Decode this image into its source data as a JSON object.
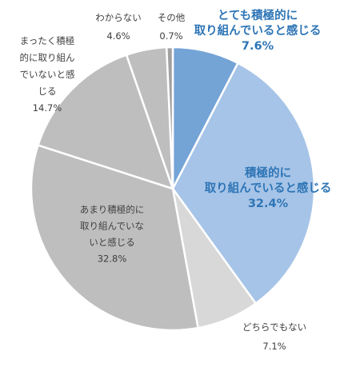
{
  "chart_data": {
    "type": "pie",
    "start": "top",
    "direction": "clockwise",
    "slices": [
      {
        "label": [
          "とても積極的に",
          "取り組んでいると感じる"
        ],
        "value": 7.6,
        "value_label": "7.6%",
        "color": "#74a3d6",
        "label_color": "#2e75b6"
      },
      {
        "label": [
          "積極的に",
          "取り組んでいると感じる"
        ],
        "value": 32.4,
        "value_label": "32.4%",
        "color": "#a6c4e7",
        "label_color": "#2e75b6"
      },
      {
        "label": [
          "どちらでもない"
        ],
        "value": 7.1,
        "value_label": "7.1%",
        "color": "#d8d8d8",
        "label_color": "#3f3f3f"
      },
      {
        "label": [
          "あまり積極的に",
          "取り組んでいな",
          "いと感じる"
        ],
        "value": 32.8,
        "value_label": "32.8%",
        "color": "#bebebe",
        "label_color": "#3f3f3f"
      },
      {
        "label": [
          "まったく積極",
          "的に取り組ん",
          "でいないと感",
          "じる"
        ],
        "value": 14.7,
        "value_label": "14.7%",
        "color": "#bebebe",
        "label_color": "#3f3f3f"
      },
      {
        "label": [
          "わからない"
        ],
        "value": 4.6,
        "value_label": "4.6%",
        "color": "#bebebe",
        "label_color": "#3f3f3f"
      },
      {
        "label": [
          "その他"
        ],
        "value": 0.7,
        "value_label": "0.7%",
        "color": "#a0a0a0",
        "label_color": "#3f3f3f"
      }
    ]
  }
}
